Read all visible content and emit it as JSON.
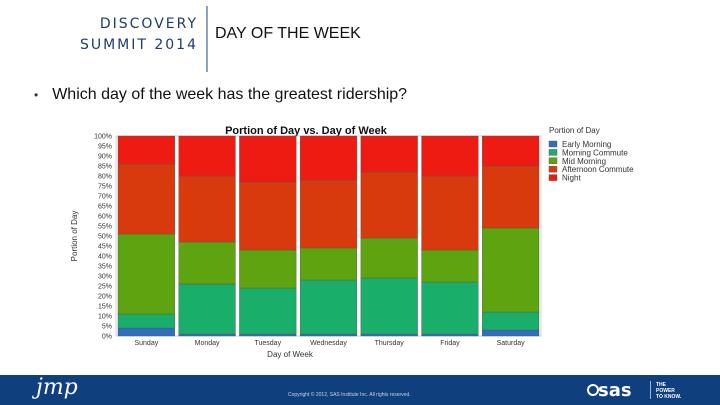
{
  "header": {
    "brand_line1": "DISCOVERY",
    "brand_line2": "SUMMIT 2014",
    "title": "DAY OF THE WEEK"
  },
  "bullet": {
    "text": "Which day of the week has the greatest ridership?"
  },
  "colors": {
    "Early Morning": "#2f6fbf",
    "Morning Commute": "#1aae6b",
    "Mid Morning": "#5ea310",
    "Afternoon Commute": "#d83a0e",
    "Night": "#ee1b12"
  },
  "chart_data": {
    "type": "bar",
    "stacked": true,
    "title": "Portion of Day vs. Day of Week",
    "xlabel": "Day of Week",
    "ylabel": "Portion of Day",
    "categories": [
      "Sunday",
      "Monday",
      "Tuesday",
      "Wednesday",
      "Thursday",
      "Friday",
      "Saturday"
    ],
    "yticks": [
      "0%",
      "5%",
      "10%",
      "15%",
      "20%",
      "25%",
      "30%",
      "35%",
      "40%",
      "45%",
      "50%",
      "55%",
      "60%",
      "65%",
      "70%",
      "75%",
      "80%",
      "85%",
      "90%",
      "95%",
      "100%"
    ],
    "ylim": [
      0,
      100
    ],
    "legend_title": "Portion of Day",
    "legend_position": "right",
    "series": [
      {
        "name": "Early Morning",
        "values": [
          4,
          1,
          1,
          1,
          1,
          1,
          3
        ]
      },
      {
        "name": "Morning Commute",
        "values": [
          7,
          25,
          23,
          27,
          28,
          26,
          9
        ]
      },
      {
        "name": "Mid Morning",
        "values": [
          40,
          21,
          19,
          16,
          20,
          16,
          42
        ]
      },
      {
        "name": "Afternoon Commute",
        "values": [
          35,
          33,
          34,
          34,
          33,
          37,
          31
        ]
      },
      {
        "name": "Night",
        "values": [
          14,
          20,
          23,
          22,
          18,
          20,
          15
        ]
      }
    ]
  },
  "footer": {
    "logo": "jmp",
    "copyright": "Copyright © 2012, SAS Institute Inc. All rights reserved.",
    "sas_logo": "sas",
    "power_line1": "THE",
    "power_line2": "POWER",
    "power_line3": "TO KNOW."
  }
}
